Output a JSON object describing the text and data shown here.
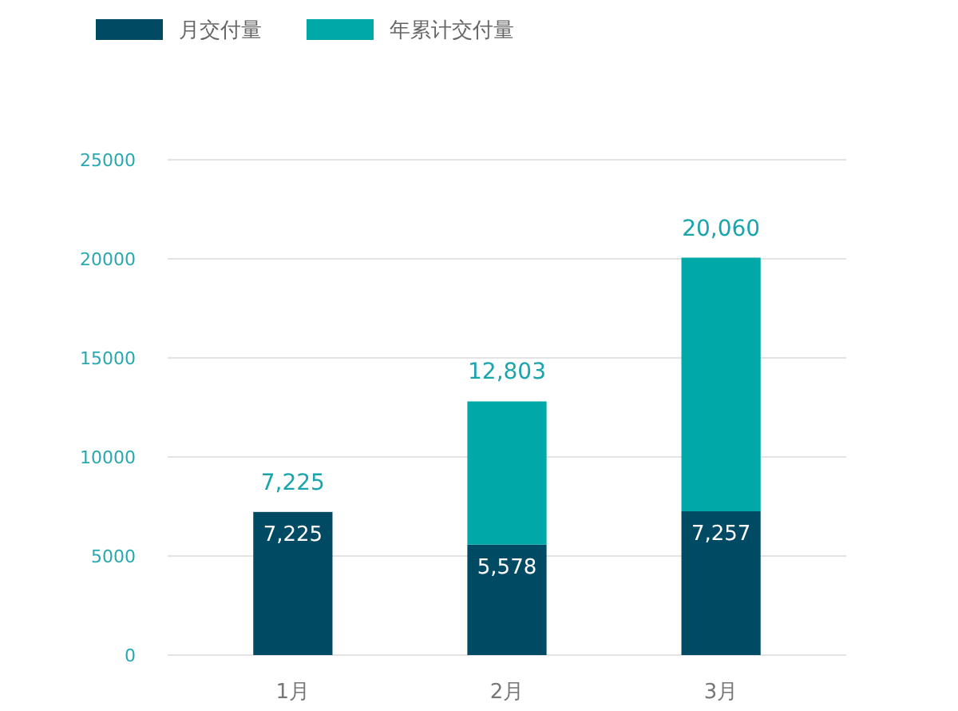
{
  "chart_data": {
    "type": "bar",
    "stacked": true,
    "categories": [
      "1月",
      "2月",
      "3月"
    ],
    "series": [
      {
        "name": "月交付量",
        "color": "#004a63",
        "values": [
          7225,
          5578,
          7257
        ],
        "value_labels": [
          "7,225",
          "5,578",
          "7,257"
        ]
      },
      {
        "name": "年累计交付量",
        "color": "#00a8a8",
        "values": [
          null,
          7225,
          12803
        ]
      }
    ],
    "totals": [
      "7,225",
      "12,803",
      "20,060"
    ],
    "ylim": [
      0,
      25000
    ],
    "yticks": [
      0,
      5000,
      10000,
      15000,
      20000,
      25000
    ],
    "grid": "y",
    "legend": "top left"
  }
}
